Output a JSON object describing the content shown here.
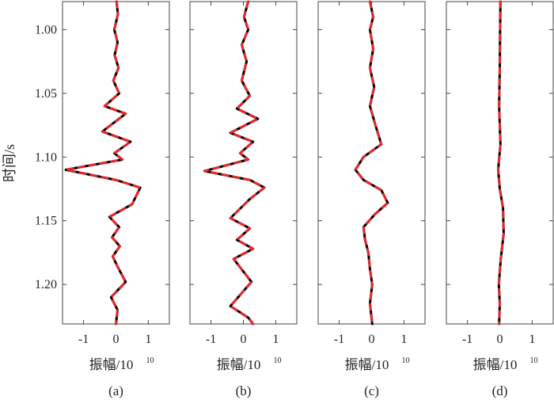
{
  "figure": {
    "ylabel": "时间/s",
    "xlabel_main": "振幅/10",
    "xlabel_exp": "10",
    "y_ticks": [
      "1.00",
      "1.05",
      "1.10",
      "1.15",
      "1.20"
    ],
    "y_tick_values": [
      1.0,
      1.05,
      1.1,
      1.15,
      1.2
    ],
    "x_ticks": [
      "-1",
      "0",
      "1"
    ],
    "x_tick_values": [
      -1,
      0,
      1
    ],
    "colors": {
      "series_a": "#000000",
      "series_b": "#e8262a",
      "axis": "#444444"
    }
  },
  "chart_data": [
    {
      "type": "line",
      "panel_label": "(a)",
      "xlim": [
        -1.65,
        1.65
      ],
      "ylim": [
        0.978,
        1.231
      ],
      "series": [
        {
          "color": "#000000",
          "points": [
            [
              0.02,
              0.978
            ],
            [
              0.06,
              0.988
            ],
            [
              -0.05,
              1.0
            ],
            [
              0.05,
              1.01
            ],
            [
              -0.04,
              1.02
            ],
            [
              0.08,
              1.03
            ],
            [
              -0.08,
              1.04
            ],
            [
              0.1,
              1.05
            ],
            [
              -0.35,
              1.06
            ],
            [
              0.3,
              1.066
            ],
            [
              -0.42,
              1.08
            ],
            [
              0.45,
              1.088
            ],
            [
              -0.05,
              1.097
            ],
            [
              0.2,
              1.102
            ],
            [
              -1.55,
              1.11
            ],
            [
              0.0,
              1.118
            ],
            [
              0.75,
              1.124
            ],
            [
              0.5,
              1.137
            ],
            [
              -0.2,
              1.147
            ],
            [
              0.1,
              1.155
            ],
            [
              -0.12,
              1.163
            ],
            [
              0.12,
              1.17
            ],
            [
              -0.1,
              1.178
            ],
            [
              0.05,
              1.186
            ],
            [
              0.3,
              1.198
            ],
            [
              -0.15,
              1.21
            ],
            [
              0.05,
              1.22
            ],
            [
              0.0,
              1.231
            ]
          ]
        },
        {
          "color": "#e8262a",
          "points": [
            [
              0.02,
              0.978
            ],
            [
              0.06,
              0.988
            ],
            [
              -0.05,
              1.0
            ],
            [
              0.05,
              1.01
            ],
            [
              -0.04,
              1.02
            ],
            [
              0.08,
              1.03
            ],
            [
              -0.08,
              1.04
            ],
            [
              0.1,
              1.05
            ],
            [
              -0.35,
              1.06
            ],
            [
              0.3,
              1.066
            ],
            [
              -0.42,
              1.08
            ],
            [
              0.45,
              1.088
            ],
            [
              -0.05,
              1.097
            ],
            [
              0.2,
              1.102
            ],
            [
              -1.55,
              1.11
            ],
            [
              0.0,
              1.118
            ],
            [
              0.75,
              1.124
            ],
            [
              0.5,
              1.137
            ],
            [
              -0.2,
              1.147
            ],
            [
              0.1,
              1.155
            ],
            [
              -0.12,
              1.163
            ],
            [
              0.12,
              1.17
            ],
            [
              -0.1,
              1.178
            ],
            [
              0.05,
              1.186
            ],
            [
              0.3,
              1.198
            ],
            [
              -0.15,
              1.21
            ],
            [
              0.05,
              1.22
            ],
            [
              0.0,
              1.231
            ]
          ]
        }
      ]
    },
    {
      "type": "line",
      "panel_label": "(b)",
      "xlim": [
        -1.65,
        1.65
      ],
      "ylim": [
        0.978,
        1.231
      ],
      "series": [
        {
          "color": "#000000",
          "points": [
            [
              0.15,
              0.978
            ],
            [
              0.02,
              0.99
            ],
            [
              0.15,
              1.0
            ],
            [
              -0.05,
              1.012
            ],
            [
              0.1,
              1.025
            ],
            [
              -0.05,
              1.04
            ],
            [
              0.2,
              1.052
            ],
            [
              -0.2,
              1.062
            ],
            [
              0.45,
              1.07
            ],
            [
              -0.4,
              1.081
            ],
            [
              0.3,
              1.088
            ],
            [
              -0.1,
              1.097
            ],
            [
              0.15,
              1.102
            ],
            [
              -1.2,
              1.111
            ],
            [
              0.2,
              1.118
            ],
            [
              0.65,
              1.124
            ],
            [
              0.2,
              1.133
            ],
            [
              -0.4,
              1.148
            ],
            [
              0.2,
              1.156
            ],
            [
              -0.2,
              1.165
            ],
            [
              0.3,
              1.172
            ],
            [
              -0.3,
              1.18
            ],
            [
              0.25,
              1.198
            ],
            [
              -0.4,
              1.217
            ],
            [
              0.15,
              1.226
            ],
            [
              0.3,
              1.231
            ]
          ]
        },
        {
          "color": "#e8262a",
          "points": [
            [
              0.15,
              0.978
            ],
            [
              0.02,
              0.99
            ],
            [
              0.15,
              1.0
            ],
            [
              -0.05,
              1.012
            ],
            [
              0.1,
              1.025
            ],
            [
              -0.05,
              1.04
            ],
            [
              0.2,
              1.052
            ],
            [
              -0.2,
              1.062
            ],
            [
              0.45,
              1.07
            ],
            [
              -0.4,
              1.081
            ],
            [
              0.3,
              1.088
            ],
            [
              -0.1,
              1.097
            ],
            [
              0.15,
              1.102
            ],
            [
              -1.2,
              1.111
            ],
            [
              0.2,
              1.118
            ],
            [
              0.65,
              1.124
            ],
            [
              0.2,
              1.133
            ],
            [
              -0.4,
              1.148
            ],
            [
              0.2,
              1.156
            ],
            [
              -0.2,
              1.165
            ],
            [
              0.3,
              1.172
            ],
            [
              -0.3,
              1.18
            ],
            [
              0.25,
              1.198
            ],
            [
              -0.4,
              1.217
            ],
            [
              0.15,
              1.226
            ],
            [
              0.3,
              1.231
            ]
          ]
        }
      ]
    },
    {
      "type": "line",
      "panel_label": "(c)",
      "xlim": [
        -1.65,
        1.65
      ],
      "ylim": [
        0.978,
        1.231
      ],
      "series": [
        {
          "color": "#000000",
          "points": [
            [
              -0.05,
              0.978
            ],
            [
              0.05,
              0.99
            ],
            [
              -0.05,
              1.0
            ],
            [
              0.05,
              1.015
            ],
            [
              -0.05,
              1.03
            ],
            [
              0.08,
              1.045
            ],
            [
              -0.05,
              1.06
            ],
            [
              0.12,
              1.075
            ],
            [
              0.3,
              1.09
            ],
            [
              -0.25,
              1.1
            ],
            [
              -0.5,
              1.11
            ],
            [
              -0.25,
              1.118
            ],
            [
              0.3,
              1.126
            ],
            [
              0.5,
              1.136
            ],
            [
              0.1,
              1.145
            ],
            [
              -0.25,
              1.155
            ],
            [
              -0.2,
              1.165
            ],
            [
              -0.1,
              1.175
            ],
            [
              -0.05,
              1.188
            ],
            [
              0.02,
              1.2
            ],
            [
              -0.05,
              1.215
            ],
            [
              0.02,
              1.231
            ]
          ]
        },
        {
          "color": "#e8262a",
          "points": [
            [
              -0.05,
              0.978
            ],
            [
              0.05,
              0.99
            ],
            [
              -0.05,
              1.0
            ],
            [
              0.05,
              1.015
            ],
            [
              -0.05,
              1.03
            ],
            [
              0.08,
              1.045
            ],
            [
              -0.05,
              1.06
            ],
            [
              0.12,
              1.075
            ],
            [
              0.3,
              1.09
            ],
            [
              -0.25,
              1.1
            ],
            [
              -0.5,
              1.11
            ],
            [
              -0.25,
              1.118
            ],
            [
              0.3,
              1.126
            ],
            [
              0.5,
              1.136
            ],
            [
              0.1,
              1.145
            ],
            [
              -0.25,
              1.155
            ],
            [
              -0.2,
              1.165
            ],
            [
              -0.1,
              1.175
            ],
            [
              -0.05,
              1.188
            ],
            [
              0.02,
              1.2
            ],
            [
              -0.05,
              1.215
            ],
            [
              0.02,
              1.231
            ]
          ]
        }
      ]
    },
    {
      "type": "line",
      "panel_label": "(d)",
      "xlim": [
        -1.65,
        1.65
      ],
      "ylim": [
        0.978,
        1.231
      ],
      "series": [
        {
          "color": "#000000",
          "points": [
            [
              0.02,
              0.978
            ],
            [
              0.01,
              1.0
            ],
            [
              0.0,
              1.03
            ],
            [
              -0.02,
              1.06
            ],
            [
              0.02,
              1.09
            ],
            [
              -0.05,
              1.11
            ],
            [
              0.0,
              1.125
            ],
            [
              0.1,
              1.14
            ],
            [
              0.12,
              1.16
            ],
            [
              0.03,
              1.18
            ],
            [
              -0.03,
              1.2
            ],
            [
              0.0,
              1.215
            ],
            [
              -0.02,
              1.231
            ]
          ]
        },
        {
          "color": "#e8262a",
          "points": [
            [
              0.02,
              0.978
            ],
            [
              0.01,
              1.0
            ],
            [
              0.0,
              1.03
            ],
            [
              -0.02,
              1.06
            ],
            [
              0.02,
              1.09
            ],
            [
              -0.05,
              1.11
            ],
            [
              0.0,
              1.125
            ],
            [
              0.1,
              1.14
            ],
            [
              0.12,
              1.16
            ],
            [
              0.03,
              1.18
            ],
            [
              -0.03,
              1.2
            ],
            [
              0.0,
              1.215
            ],
            [
              -0.02,
              1.231
            ]
          ]
        }
      ]
    }
  ]
}
